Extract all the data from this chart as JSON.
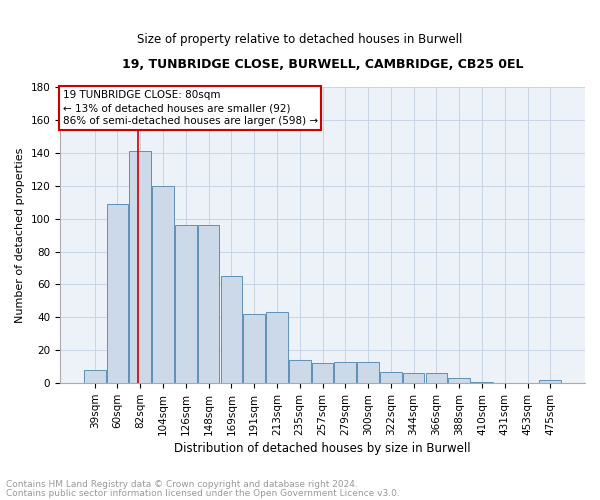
{
  "title": "19, TUNBRIDGE CLOSE, BURWELL, CAMBRIDGE, CB25 0EL",
  "subtitle": "Size of property relative to detached houses in Burwell",
  "xlabel": "Distribution of detached houses by size in Burwell",
  "ylabel": "Number of detached properties",
  "footer_line1": "Contains HM Land Registry data © Crown copyright and database right 2024.",
  "footer_line2": "Contains public sector information licensed under the Open Government Licence v3.0.",
  "categories": [
    "39sqm",
    "60sqm",
    "82sqm",
    "104sqm",
    "126sqm",
    "148sqm",
    "169sqm",
    "191sqm",
    "213sqm",
    "235sqm",
    "257sqm",
    "279sqm",
    "300sqm",
    "322sqm",
    "344sqm",
    "366sqm",
    "388sqm",
    "410sqm",
    "431sqm",
    "453sqm",
    "475sqm"
  ],
  "values": [
    8,
    109,
    141,
    120,
    96,
    96,
    65,
    42,
    43,
    14,
    12,
    13,
    13,
    7,
    6,
    6,
    3,
    1,
    0,
    0,
    2
  ],
  "bar_color": "#ccd9e8",
  "bar_edge_color": "#6090b8",
  "grid_color": "#c8d4e4",
  "background_color": "#edf2f8",
  "annotation_line1": "19 TUNBRIDGE CLOSE: 80sqm",
  "annotation_line2": "← 13% of detached houses are smaller (92)",
  "annotation_line3": "86% of semi-detached houses are larger (598) →",
  "annotation_box_edge_color": "#cc0000",
  "property_line_color": "#cc0000",
  "ylim": [
    0,
    180
  ],
  "yticks": [
    0,
    20,
    40,
    60,
    80,
    100,
    120,
    140,
    160,
    180
  ],
  "title_fontsize": 9,
  "subtitle_fontsize": 8.5,
  "xlabel_fontsize": 8.5,
  "ylabel_fontsize": 8,
  "tick_fontsize": 7.5,
  "annotation_fontsize": 7.5,
  "footer_fontsize": 6.5,
  "footer_color": "#999999"
}
